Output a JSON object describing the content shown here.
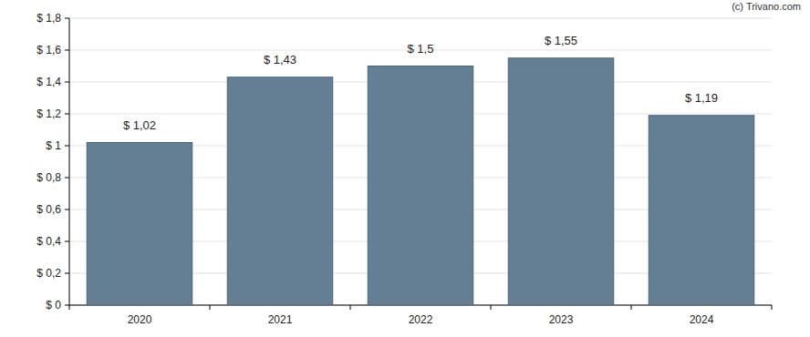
{
  "chart_data": {
    "type": "bar",
    "annotations": [
      "(c) Trivano.com"
    ],
    "categories": [
      "2020",
      "2021",
      "2022",
      "2023",
      "2024"
    ],
    "values": [
      1.02,
      1.43,
      1.5,
      1.55,
      1.19
    ],
    "value_labels": [
      "$ 1,02",
      "$ 1,43",
      "$ 1,5",
      "$ 1,55",
      "$ 1,19"
    ],
    "color": "#647f93",
    "ylim": [
      0,
      1.8
    ],
    "yticks": [
      {
        "value": 0,
        "label": "$ 0"
      },
      {
        "value": 0.2,
        "label": "$ 0,2"
      },
      {
        "value": 0.4,
        "label": "$ 0,4"
      },
      {
        "value": 0.6,
        "label": "$ 0,6"
      },
      {
        "value": 0.8,
        "label": "$ 0,8"
      },
      {
        "value": 1,
        "label": "$ 1"
      },
      {
        "value": 1.2,
        "label": "$ 1,2"
      },
      {
        "value": 1.4,
        "label": "$ 1,4"
      },
      {
        "value": 1.6,
        "label": "$ 1,6"
      },
      {
        "value": 1.8,
        "label": "$ 1,8"
      }
    ],
    "grid": true,
    "data_labels": true
  }
}
